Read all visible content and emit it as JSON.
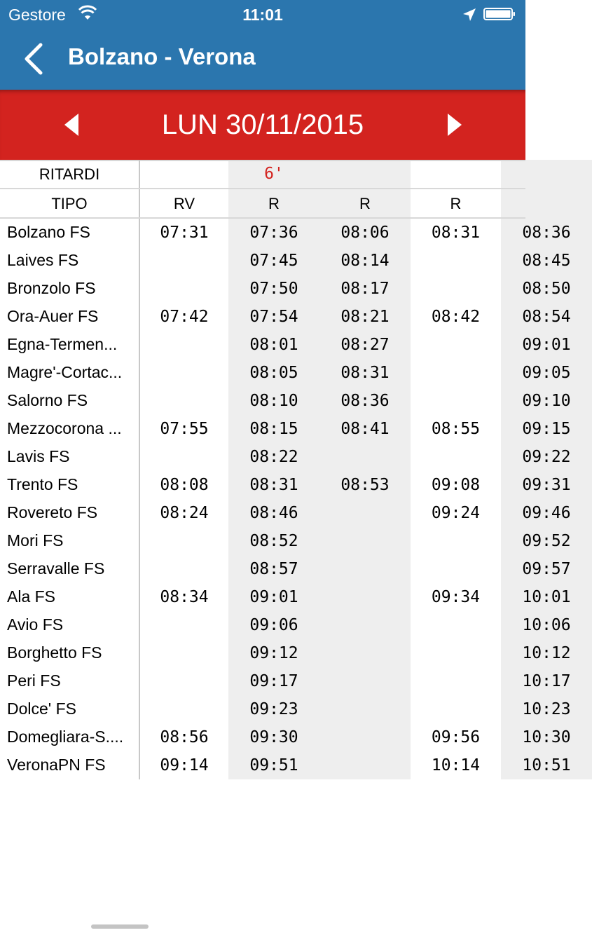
{
  "status_bar": {
    "carrier": "Gestore",
    "time": "11:01"
  },
  "nav": {
    "title": "Bolzano - Verona"
  },
  "date_bar": {
    "date": "LUN 30/11/2015"
  },
  "table": {
    "delays_label": "RITARDI",
    "type_label": "TIPO",
    "delays": [
      "",
      "6'",
      "",
      "",
      ""
    ],
    "types": [
      "RV",
      "R",
      "R",
      "R",
      ""
    ],
    "rows": [
      {
        "station": "Bolzano FS",
        "times": [
          "07:31",
          "07:36",
          "08:06",
          "08:31",
          "08:36"
        ]
      },
      {
        "station": "Laives FS",
        "times": [
          "",
          "07:45",
          "08:14",
          "",
          "08:45"
        ]
      },
      {
        "station": "Bronzolo FS",
        "times": [
          "",
          "07:50",
          "08:17",
          "",
          "08:50"
        ]
      },
      {
        "station": "Ora-Auer FS",
        "times": [
          "07:42",
          "07:54",
          "08:21",
          "08:42",
          "08:54"
        ]
      },
      {
        "station": "Egna-Termen...",
        "times": [
          "",
          "08:01",
          "08:27",
          "",
          "09:01"
        ]
      },
      {
        "station": "Magre'-Cortac...",
        "times": [
          "",
          "08:05",
          "08:31",
          "",
          "09:05"
        ]
      },
      {
        "station": "Salorno FS",
        "times": [
          "",
          "08:10",
          "08:36",
          "",
          "09:10"
        ]
      },
      {
        "station": "Mezzocorona ...",
        "times": [
          "07:55",
          "08:15",
          "08:41",
          "08:55",
          "09:15"
        ]
      },
      {
        "station": "Lavis FS",
        "times": [
          "",
          "08:22",
          "",
          "",
          "09:22"
        ]
      },
      {
        "station": "Trento FS",
        "times": [
          "08:08",
          "08:31",
          "08:53",
          "09:08",
          "09:31"
        ]
      },
      {
        "station": "Rovereto FS",
        "times": [
          "08:24",
          "08:46",
          "",
          "09:24",
          "09:46"
        ]
      },
      {
        "station": "Mori FS",
        "times": [
          "",
          "08:52",
          "",
          "",
          "09:52"
        ]
      },
      {
        "station": "Serravalle FS",
        "times": [
          "",
          "08:57",
          "",
          "",
          "09:57"
        ]
      },
      {
        "station": "Ala FS",
        "times": [
          "08:34",
          "09:01",
          "",
          "09:34",
          "10:01"
        ]
      },
      {
        "station": "Avio FS",
        "times": [
          "",
          "09:06",
          "",
          "",
          "10:06"
        ]
      },
      {
        "station": "Borghetto FS",
        "times": [
          "",
          "09:12",
          "",
          "",
          "10:12"
        ]
      },
      {
        "station": "Peri FS",
        "times": [
          "",
          "09:17",
          "",
          "",
          "10:17"
        ]
      },
      {
        "station": "Dolce' FS",
        "times": [
          "",
          "09:23",
          "",
          "",
          "10:23"
        ]
      },
      {
        "station": "Domegliara-S....",
        "times": [
          "08:56",
          "09:30",
          "",
          "09:56",
          "10:30"
        ]
      },
      {
        "station": "VeronaPN FS",
        "times": [
          "09:14",
          "09:51",
          "",
          "10:14",
          "10:51"
        ]
      }
    ]
  },
  "colors": {
    "header_blue": "#2b76ae",
    "date_red": "#d3231f",
    "column_gray": "#eeeeee"
  }
}
